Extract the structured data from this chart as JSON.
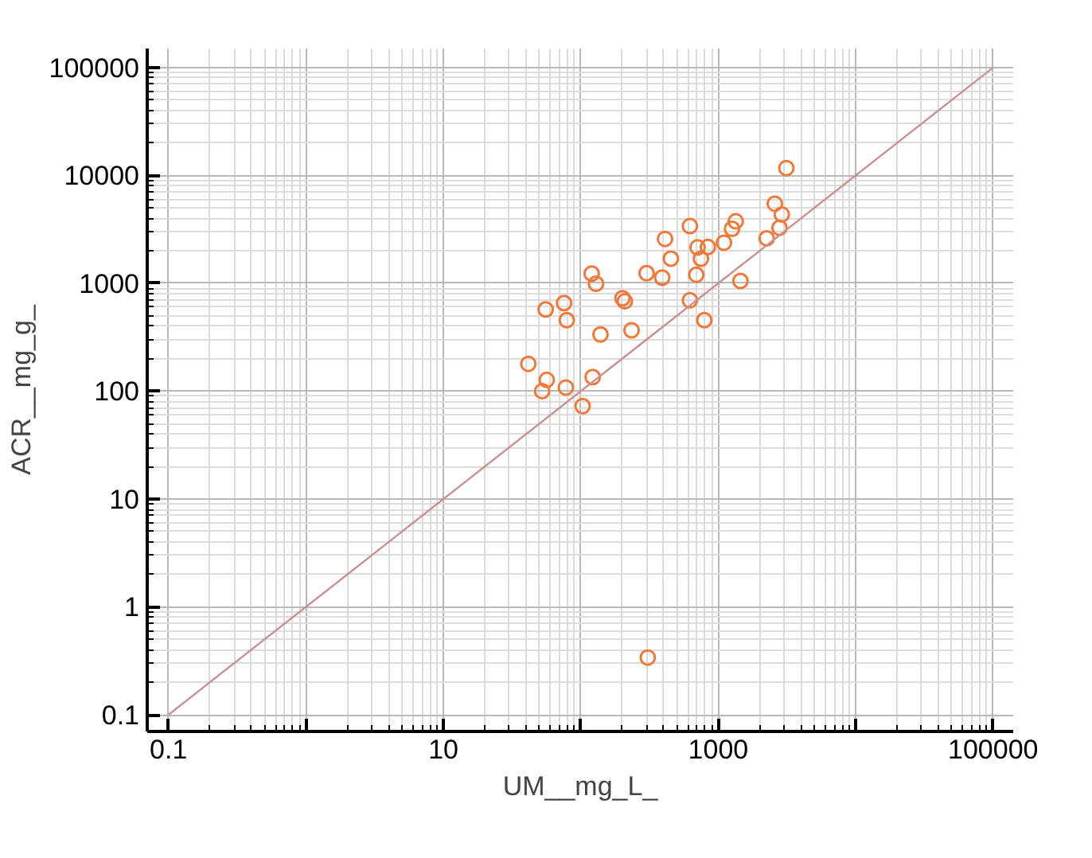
{
  "chart_data": {
    "type": "scatter",
    "xlabel": "UM__mg_L_",
    "ylabel": "ACR__mg_g_",
    "log": "xy",
    "grid": true,
    "xlim": [
      0.07,
      140000
    ],
    "ylim": [
      0.07,
      150000
    ],
    "xticks": [
      0.1,
      {
        "value": 1,
        "label": null
      },
      10,
      {
        "value": 100,
        "label": null
      },
      1000,
      {
        "value": 10000,
        "label": null
      },
      100000
    ],
    "yticks": [
      0.1,
      1,
      10,
      100,
      1000,
      10000,
      100000
    ],
    "series": [
      {
        "marker": "circle",
        "color": "#f07838",
        "x": [
          3130,
          2580,
          2900,
          2790,
          2250,
          1340,
          1260,
          1100,
          622,
          410,
          707,
          840,
          748,
          452,
          692,
          301,
          391,
          1450,
          120,
          129,
          201,
          209,
          622,
          792,
          75.5,
          55.5,
          79,
          139,
          234,
          41.5,
          56.5,
          52.3,
          77.8,
          122,
          103,
          307
        ],
        "values": [
          11700,
          5470,
          4350,
          3270,
          2610,
          3750,
          3200,
          2380,
          3390,
          2580,
          2150,
          2170,
          1690,
          1690,
          1200,
          1240,
          1130,
          1050,
          1230,
          990,
          726,
          680,
          695,
          455,
          656,
          572,
          455,
          335,
          367,
          179,
          127,
          100,
          108,
          135,
          72.6,
          0.339
        ]
      },
      {
        "type": "line",
        "color": "#c89090",
        "x": [
          0.1,
          100000
        ],
        "values": [
          0.1,
          100000
        ]
      }
    ]
  }
}
